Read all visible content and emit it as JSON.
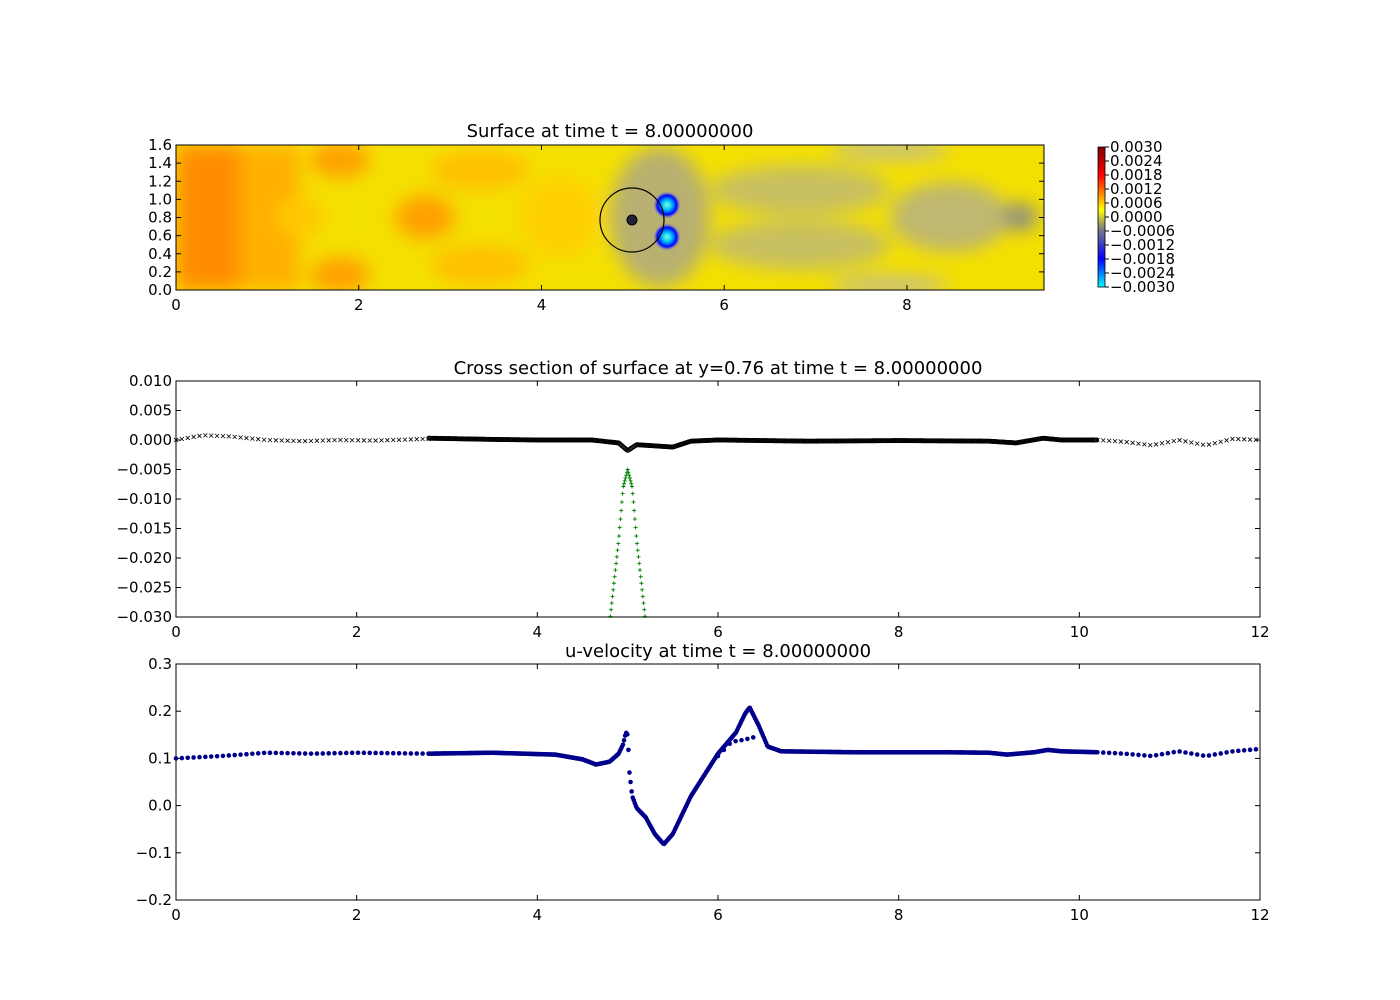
{
  "chart_data": [
    {
      "type": "heatmap",
      "title": "Surface at time t =     8.00000000",
      "xlim": [
        0,
        9.5
      ],
      "ylim": [
        0,
        1.6
      ],
      "xticks": [
        "0",
        "2",
        "4",
        "6",
        "8"
      ],
      "yticks": [
        "0.0",
        "0.2",
        "0.4",
        "0.6",
        "0.8",
        "1.0",
        "1.2",
        "1.4",
        "1.6"
      ],
      "colorbar_ticks": [
        "0.0030",
        "0.0024",
        "0.0018",
        "0.0012",
        "0.0006",
        "0.0000",
        "−0.0006",
        "−0.0012",
        "−0.0018",
        "−0.0024",
        "−0.0030"
      ],
      "colorbar_range": [
        -0.003,
        0.003
      ],
      "colormap": [
        "#00ffff",
        "#0000ff",
        "#808080",
        "#ffff00",
        "#ff0000",
        "#800000"
      ],
      "obstacle": {
        "cx": 5.0,
        "cy": 0.76,
        "r_outer": 0.35,
        "r_inner": 0.05
      },
      "features": [
        {
          "x": 5.4,
          "y": 0.95,
          "level": -0.003
        },
        {
          "x": 5.4,
          "y": 0.58,
          "level": -0.003
        },
        {
          "x": 0.45,
          "y": 0.76,
          "level": 0.0014
        },
        {
          "x": 1.85,
          "y": 1.4,
          "level": 0.0008
        },
        {
          "x": 2.7,
          "y": 0.76,
          "level": 0.001
        },
        {
          "x": 9.2,
          "y": 0.76,
          "level": -0.0008
        }
      ]
    },
    {
      "type": "scatter",
      "title": "Cross section of surface at y=0.76 at time t =     8.00000000",
      "xlim": [
        0,
        12
      ],
      "ylim": [
        -0.03,
        0.01
      ],
      "xticks": [
        "0",
        "2",
        "4",
        "6",
        "8",
        "10",
        "12"
      ],
      "yticks": [
        "0.010",
        "0.005",
        "0.000",
        "−0.005",
        "−0.010",
        "−0.015",
        "−0.020",
        "−0.025",
        "−0.030"
      ],
      "series": [
        {
          "marker": "x",
          "color": "#000000",
          "x_range": [
            0,
            2.8
          ],
          "points": [
            [
              0,
              0.0
            ],
            [
              0.3,
              0.0008
            ],
            [
              0.6,
              0.0006
            ],
            [
              1.0,
              0.0
            ],
            [
              1.4,
              -0.0002
            ],
            [
              1.8,
              0.0
            ],
            [
              2.2,
              -0.0001
            ],
            [
              2.8,
              0.0002
            ]
          ]
        },
        {
          "marker": "dense",
          "color": "#000000",
          "x_range": [
            2.8,
            10.2
          ],
          "points": [
            [
              2.8,
              0.0003
            ],
            [
              3.5,
              0.0001
            ],
            [
              4.0,
              0.0
            ],
            [
              4.6,
              0.0
            ],
            [
              4.9,
              -0.0005
            ],
            [
              5.0,
              -0.0018
            ],
            [
              5.1,
              -0.0008
            ],
            [
              5.3,
              -0.001
            ],
            [
              5.5,
              -0.0012
            ],
            [
              5.7,
              -0.0002
            ],
            [
              6.0,
              0.0
            ],
            [
              7.0,
              -0.0002
            ],
            [
              8.0,
              -0.0001
            ],
            [
              9.0,
              -0.0002
            ],
            [
              9.3,
              -0.0005
            ],
            [
              9.6,
              0.0003
            ],
            [
              9.8,
              0.0
            ],
            [
              10.2,
              0.0
            ]
          ]
        },
        {
          "marker": "x",
          "color": "#000000",
          "x_range": [
            10.2,
            12
          ],
          "points": [
            [
              10.2,
              0.0
            ],
            [
              10.5,
              -0.0003
            ],
            [
              10.8,
              -0.0009
            ],
            [
              11.1,
              0.0
            ],
            [
              11.4,
              -0.0009
            ],
            [
              11.7,
              0.0002
            ],
            [
              12.0,
              0.0
            ]
          ]
        },
        {
          "marker": "+",
          "color": "#008000",
          "x_range": [
            4.8,
            5.2
          ],
          "points": [
            [
              4.8,
              -0.031
            ],
            [
              4.9,
              -0.017
            ],
            [
              4.95,
              -0.008
            ],
            [
              5.0,
              -0.005
            ],
            [
              5.05,
              -0.008
            ],
            [
              5.1,
              -0.017
            ],
            [
              5.2,
              -0.031
            ]
          ]
        }
      ]
    },
    {
      "type": "scatter",
      "title": "u-velocity at time t =     8.00000000",
      "xlim": [
        0,
        12
      ],
      "ylim": [
        -0.2,
        0.3
      ],
      "xticks": [
        "0",
        "2",
        "4",
        "6",
        "8",
        "10",
        "12"
      ],
      "yticks": [
        "0.3",
        "0.2",
        "0.1",
        "0.0",
        "−0.1",
        "−0.2"
      ],
      "series": [
        {
          "marker": "o",
          "color": "#00008b",
          "x_range": [
            0,
            2.8
          ],
          "points": [
            [
              0,
              0.1
            ],
            [
              0.5,
              0.105
            ],
            [
              1.0,
              0.112
            ],
            [
              1.5,
              0.11
            ],
            [
              2.0,
              0.112
            ],
            [
              2.8,
              0.11
            ]
          ]
        },
        {
          "marker": "dense",
          "color": "#00008b",
          "x_range": [
            2.8,
            10.2
          ],
          "points": [
            [
              2.8,
              0.11
            ],
            [
              3.5,
              0.112
            ],
            [
              4.2,
              0.108
            ],
            [
              4.5,
              0.098
            ],
            [
              4.65,
              0.087
            ],
            [
              4.8,
              0.093
            ],
            [
              4.9,
              0.11
            ],
            [
              4.95,
              0.13
            ],
            [
              4.98,
              0.155
            ],
            [
              5.0,
              0.15
            ],
            [
              5.02,
              0.07
            ],
            [
              5.05,
              0.02
            ],
            [
              5.1,
              -0.005
            ],
            [
              5.2,
              -0.025
            ],
            [
              5.3,
              -0.06
            ],
            [
              5.4,
              -0.082
            ],
            [
              5.5,
              -0.06
            ],
            [
              5.7,
              0.02
            ],
            [
              6.0,
              0.11
            ],
            [
              6.2,
              0.155
            ],
            [
              6.3,
              0.195
            ],
            [
              6.35,
              0.208
            ],
            [
              6.45,
              0.17
            ],
            [
              6.55,
              0.125
            ],
            [
              6.7,
              0.115
            ],
            [
              7.5,
              0.113
            ],
            [
              8.5,
              0.113
            ],
            [
              9.0,
              0.112
            ],
            [
              9.2,
              0.108
            ],
            [
              9.5,
              0.113
            ],
            [
              9.65,
              0.118
            ],
            [
              9.8,
              0.115
            ],
            [
              10.2,
              0.113
            ]
          ]
        },
        {
          "marker": "o",
          "color": "#00008b",
          "x_range": [
            6.0,
            6.4
          ],
          "points": [
            [
              6.0,
              0.105
            ],
            [
              6.15,
              0.135
            ],
            [
              6.3,
              0.14
            ],
            [
              6.4,
              0.145
            ]
          ]
        },
        {
          "marker": "o",
          "color": "#00008b",
          "x_range": [
            10.2,
            12
          ],
          "points": [
            [
              10.2,
              0.113
            ],
            [
              10.5,
              0.11
            ],
            [
              10.8,
              0.105
            ],
            [
              11.1,
              0.115
            ],
            [
              11.4,
              0.105
            ],
            [
              11.7,
              0.115
            ],
            [
              12.0,
              0.12
            ]
          ]
        }
      ]
    }
  ]
}
